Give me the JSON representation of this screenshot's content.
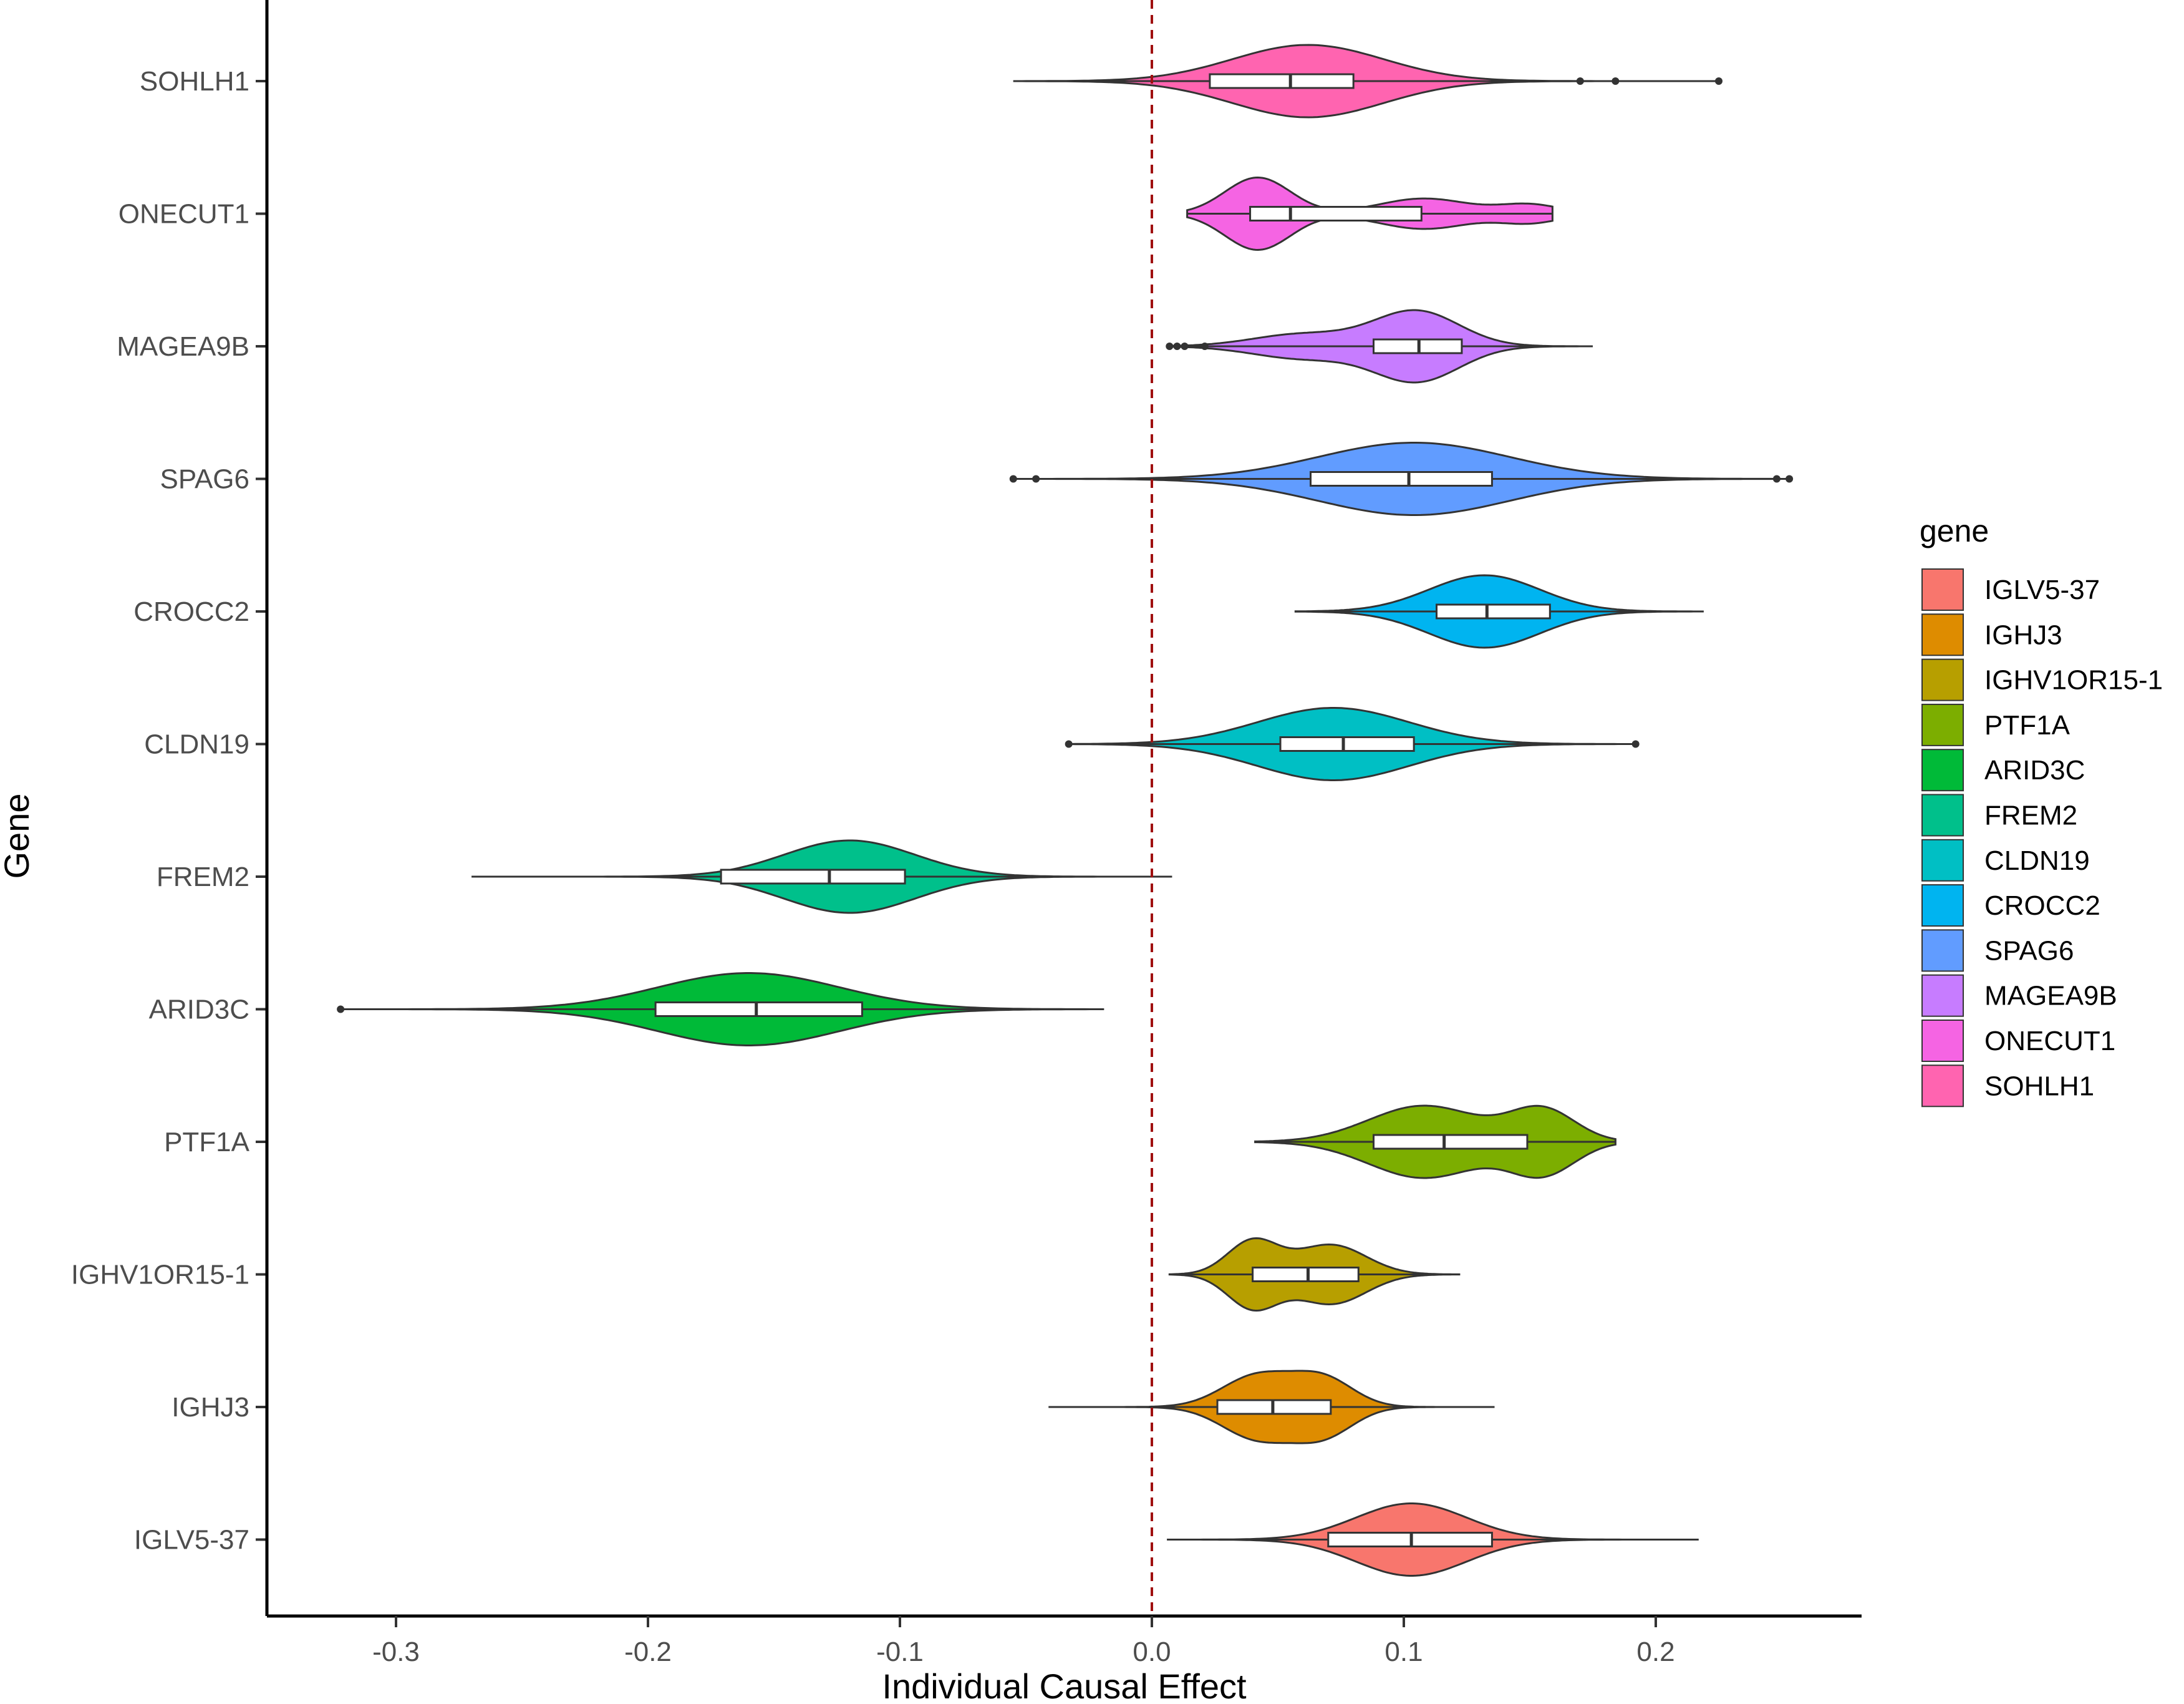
{
  "chart_data": {
    "type": "violin",
    "orientation": "horizontal",
    "xlabel": "Individual Causal Effect",
    "ylabel": "Gene",
    "xlim": [
      -0.35,
      0.28
    ],
    "xticks": [
      -0.3,
      -0.2,
      -0.1,
      0.0,
      0.1,
      0.2
    ],
    "xtick_labels": [
      "-0.3",
      "-0.2",
      "-0.1",
      "0.0",
      "0.1",
      "0.2"
    ],
    "reference_line": {
      "x": 0.0,
      "style": "dashed",
      "color": "#a01010"
    },
    "legend": {
      "title": "gene",
      "position": "right",
      "entries": [
        {
          "label": "IGLV5-37",
          "color": "#F8766D"
        },
        {
          "label": "IGHJ3",
          "color": "#DE8C00"
        },
        {
          "label": "IGHV1OR15-1",
          "color": "#B79F00"
        },
        {
          "label": "PTF1A",
          "color": "#7CAE00"
        },
        {
          "label": "ARID3C",
          "color": "#00BA38"
        },
        {
          "label": "FREM2",
          "color": "#00C08B"
        },
        {
          "label": "CLDN19",
          "color": "#00BFC4"
        },
        {
          "label": "CROCC2",
          "color": "#00B4F0"
        },
        {
          "label": "SPAG6",
          "color": "#619CFF"
        },
        {
          "label": "MAGEA9B",
          "color": "#C77CFF"
        },
        {
          "label": "ONECUT1",
          "color": "#F564E3"
        },
        {
          "label": "SOHLH1",
          "color": "#FF64B0"
        }
      ]
    },
    "series": [
      {
        "gene": "IGLV5-37",
        "color": "#F8766D",
        "min": 0.006,
        "max": 0.217,
        "q1": 0.07,
        "median": 0.103,
        "q3": 0.135,
        "modes": [
          [
            0.103,
            0.022,
            1.0
          ]
        ],
        "outliers": []
      },
      {
        "gene": "IGHJ3",
        "color": "#DE8C00",
        "min": -0.041,
        "max": 0.136,
        "q1": 0.026,
        "median": 0.048,
        "q3": 0.071,
        "modes": [
          [
            0.042,
            0.014,
            0.85
          ],
          [
            0.068,
            0.012,
            0.75
          ]
        ],
        "outliers": []
      },
      {
        "gene": "IGHV1OR15-1",
        "color": "#B79F00",
        "min": 0.007,
        "max": 0.122,
        "q1": 0.04,
        "median": 0.062,
        "q3": 0.082,
        "modes": [
          [
            0.04,
            0.01,
            0.9
          ],
          [
            0.071,
            0.014,
            0.8
          ]
        ],
        "outliers": []
      },
      {
        "gene": "PTF1A",
        "color": "#7CAE00",
        "min": 0.041,
        "max": 0.184,
        "q1": 0.088,
        "median": 0.116,
        "q3": 0.149,
        "modes": [
          [
            0.108,
            0.022,
            0.85
          ],
          [
            0.155,
            0.013,
            0.75
          ]
        ],
        "outliers": []
      },
      {
        "gene": "ARID3C",
        "color": "#00BA38",
        "min": -0.322,
        "max": -0.019,
        "q1": -0.197,
        "median": -0.157,
        "q3": -0.115,
        "modes": [
          [
            -0.16,
            0.036,
            1.0
          ]
        ],
        "outliers": [
          -0.322
        ]
      },
      {
        "gene": "FREM2",
        "color": "#00C08B",
        "min": -0.27,
        "max": 0.008,
        "q1": -0.171,
        "median": -0.128,
        "q3": -0.098,
        "modes": [
          [
            -0.12,
            0.026,
            1.0
          ]
        ],
        "outliers": []
      },
      {
        "gene": "CLDN19",
        "color": "#00BFC4",
        "min": -0.033,
        "max": 0.192,
        "q1": 0.051,
        "median": 0.076,
        "q3": 0.104,
        "modes": [
          [
            0.072,
            0.03,
            1.0
          ]
        ],
        "outliers": [
          -0.033,
          0.192
        ]
      },
      {
        "gene": "CROCC2",
        "color": "#00B4F0",
        "min": 0.057,
        "max": 0.219,
        "q1": 0.113,
        "median": 0.133,
        "q3": 0.158,
        "modes": [
          [
            0.132,
            0.022,
            1.0
          ]
        ],
        "outliers": []
      },
      {
        "gene": "SPAG6",
        "color": "#619CFF",
        "min": -0.055,
        "max": 0.253,
        "q1": 0.063,
        "median": 0.102,
        "q3": 0.135,
        "modes": [
          [
            0.104,
            0.038,
            1.0
          ]
        ],
        "outliers": [
          -0.055,
          -0.046,
          0.248,
          0.253
        ]
      },
      {
        "gene": "MAGEA9B",
        "color": "#C77CFF",
        "min": 0.007,
        "max": 0.175,
        "q1": 0.088,
        "median": 0.106,
        "q3": 0.123,
        "modes": [
          [
            0.105,
            0.017,
            1.0
          ],
          [
            0.06,
            0.02,
            0.35
          ]
        ],
        "outliers": [
          0.007,
          0.01,
          0.013,
          0.021
        ]
      },
      {
        "gene": "ONECUT1",
        "color": "#F564E3",
        "min": 0.014,
        "max": 0.159,
        "q1": 0.039,
        "median": 0.055,
        "q3": 0.107,
        "modes": [
          [
            0.042,
            0.013,
            1.0
          ],
          [
            0.108,
            0.018,
            0.42
          ],
          [
            0.15,
            0.012,
            0.25
          ]
        ],
        "outliers": []
      },
      {
        "gene": "SOHLH1",
        "color": "#FF64B0",
        "min": -0.055,
        "max": 0.225,
        "q1": 0.023,
        "median": 0.055,
        "q3": 0.08,
        "modes": [
          [
            0.062,
            0.03,
            1.0
          ]
        ],
        "outliers": [
          0.17,
          0.184,
          0.225
        ]
      }
    ]
  }
}
